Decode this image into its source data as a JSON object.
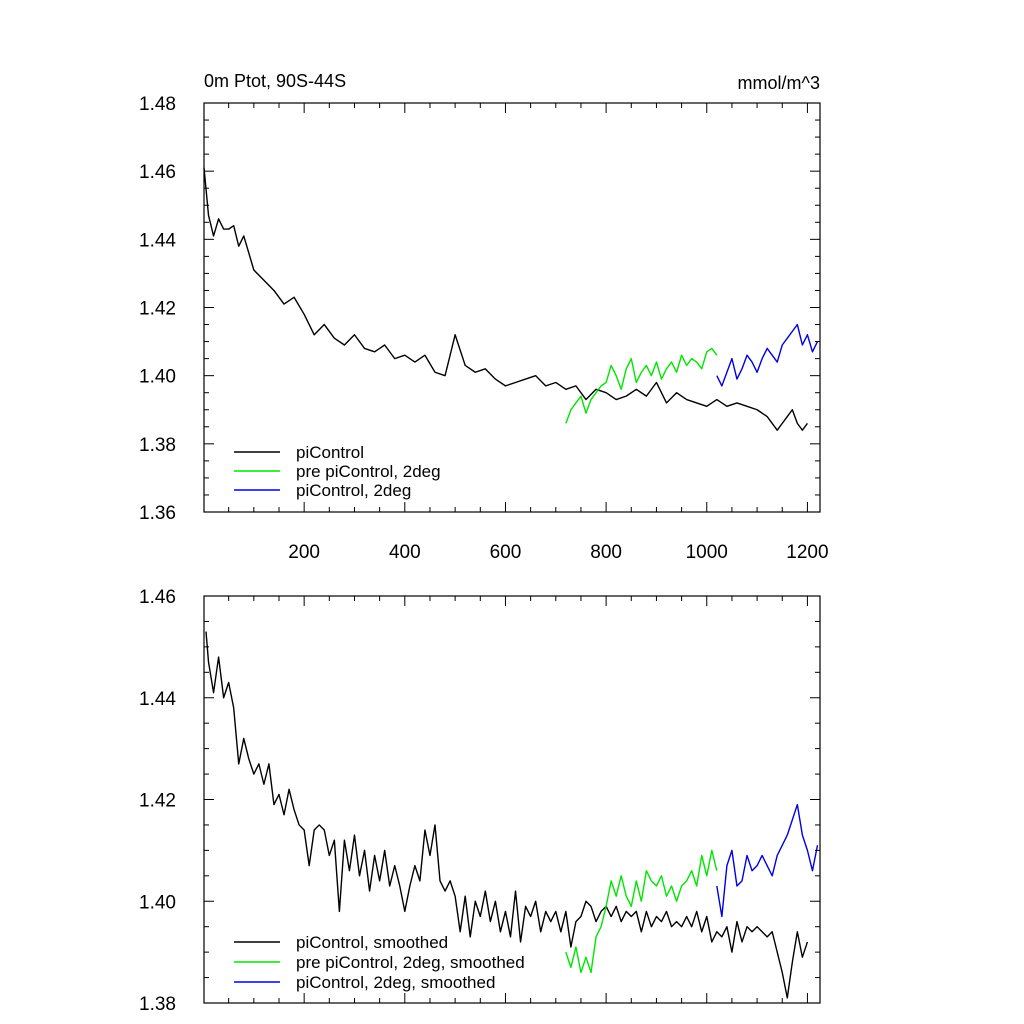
{
  "colors": {
    "piControl": "#000000",
    "pre_piControl_2deg": "#00e600",
    "piControl_2deg": "#0000e6"
  },
  "chart_data": [
    {
      "type": "line",
      "title": "0m Ptot, 90S-44S",
      "units": "mmol/m^3",
      "xlim": [
        1,
        1225
      ],
      "ylim": [
        1.36,
        1.48
      ],
      "xticks": [
        200,
        400,
        600,
        800,
        1000,
        1200
      ],
      "xtick_labels": [
        "200",
        "400",
        "600",
        "800",
        "1000",
        "1200"
      ],
      "yticks": [
        1.36,
        1.38,
        1.4,
        1.42,
        1.44,
        1.46,
        1.48
      ],
      "ytick_labels": [
        "1.36",
        "1.38",
        "1.40",
        "1.42",
        "1.44",
        "1.46",
        "1.48"
      ],
      "legend_position": "bottom-left",
      "series": [
        {
          "name": "piControl",
          "color": "#000000",
          "x": [
            1,
            10,
            20,
            30,
            40,
            50,
            60,
            70,
            80,
            90,
            100,
            120,
            140,
            160,
            180,
            200,
            220,
            240,
            260,
            280,
            300,
            320,
            340,
            360,
            380,
            400,
            420,
            440,
            460,
            480,
            500,
            520,
            540,
            560,
            580,
            600,
            620,
            640,
            660,
            680,
            700,
            720,
            740,
            760,
            780,
            800,
            820,
            840,
            860,
            880,
            900,
            920,
            940,
            960,
            980,
            1000,
            1020,
            1040,
            1060,
            1080,
            1100,
            1120,
            1140,
            1150,
            1160,
            1170,
            1180,
            1190,
            1200
          ],
          "y": [
            1.461,
            1.447,
            1.441,
            1.446,
            1.443,
            1.443,
            1.444,
            1.438,
            1.441,
            1.436,
            1.431,
            1.428,
            1.425,
            1.421,
            1.423,
            1.418,
            1.412,
            1.415,
            1.411,
            1.409,
            1.412,
            1.408,
            1.407,
            1.409,
            1.405,
            1.406,
            1.404,
            1.406,
            1.401,
            1.4,
            1.412,
            1.403,
            1.401,
            1.402,
            1.399,
            1.397,
            1.398,
            1.399,
            1.4,
            1.397,
            1.398,
            1.396,
            1.397,
            1.393,
            1.396,
            1.395,
            1.393,
            1.394,
            1.396,
            1.394,
            1.398,
            1.392,
            1.395,
            1.393,
            1.392,
            1.391,
            1.393,
            1.391,
            1.392,
            1.391,
            1.39,
            1.388,
            1.384,
            1.386,
            1.388,
            1.39,
            1.386,
            1.384,
            1.386
          ]
        },
        {
          "name": "pre piControl, 2deg",
          "color": "#00e600",
          "x": [
            720,
            730,
            740,
            750,
            760,
            770,
            780,
            790,
            800,
            810,
            820,
            830,
            840,
            850,
            860,
            870,
            880,
            890,
            900,
            910,
            920,
            930,
            940,
            950,
            960,
            970,
            980,
            990,
            1000,
            1010,
            1020
          ],
          "y": [
            1.386,
            1.39,
            1.392,
            1.394,
            1.389,
            1.393,
            1.395,
            1.397,
            1.398,
            1.403,
            1.4,
            1.396,
            1.402,
            1.405,
            1.398,
            1.401,
            1.403,
            1.4,
            1.404,
            1.399,
            1.402,
            1.404,
            1.401,
            1.406,
            1.403,
            1.405,
            1.404,
            1.402,
            1.407,
            1.408,
            1.406
          ]
        },
        {
          "name": "piControl, 2deg",
          "color": "#0000e6",
          "x": [
            1020,
            1030,
            1040,
            1050,
            1060,
            1070,
            1080,
            1090,
            1100,
            1110,
            1120,
            1130,
            1140,
            1150,
            1160,
            1170,
            1180,
            1190,
            1200,
            1210,
            1220
          ],
          "y": [
            1.4,
            1.397,
            1.401,
            1.405,
            1.399,
            1.402,
            1.406,
            1.404,
            1.401,
            1.405,
            1.408,
            1.406,
            1.404,
            1.409,
            1.411,
            1.413,
            1.415,
            1.409,
            1.412,
            1.407,
            1.41
          ]
        }
      ]
    },
    {
      "type": "line",
      "xlim": [
        1,
        1225
      ],
      "ylim": [
        1.38,
        1.46
      ],
      "yticks": [
        1.38,
        1.4,
        1.42,
        1.44,
        1.46
      ],
      "ytick_labels": [
        "1.38",
        "1.40",
        "1.42",
        "1.44",
        "1.46"
      ],
      "xticks": [
        200,
        400,
        600,
        800,
        1000,
        1200
      ],
      "legend_position": "bottom-left",
      "series": [
        {
          "name": "piControl, smoothed",
          "color": "#000000",
          "x": [
            5,
            10,
            20,
            30,
            40,
            50,
            60,
            70,
            80,
            90,
            100,
            110,
            120,
            130,
            140,
            150,
            160,
            170,
            180,
            190,
            200,
            210,
            220,
            230,
            240,
            250,
            260,
            270,
            280,
            290,
            300,
            310,
            320,
            330,
            340,
            350,
            360,
            370,
            380,
            390,
            400,
            410,
            420,
            430,
            440,
            450,
            460,
            470,
            480,
            490,
            500,
            510,
            520,
            530,
            540,
            550,
            560,
            570,
            580,
            590,
            600,
            610,
            620,
            630,
            640,
            650,
            660,
            670,
            680,
            690,
            700,
            710,
            720,
            730,
            740,
            750,
            760,
            770,
            780,
            790,
            800,
            810,
            820,
            830,
            840,
            850,
            860,
            870,
            880,
            890,
            900,
            910,
            920,
            930,
            940,
            950,
            960,
            970,
            980,
            990,
            1000,
            1010,
            1020,
            1030,
            1040,
            1050,
            1060,
            1070,
            1080,
            1090,
            1100,
            1110,
            1120,
            1130,
            1140,
            1150,
            1160,
            1170,
            1180,
            1190,
            1200
          ],
          "y": [
            1.453,
            1.447,
            1.441,
            1.448,
            1.44,
            1.443,
            1.438,
            1.427,
            1.432,
            1.428,
            1.425,
            1.427,
            1.423,
            1.427,
            1.419,
            1.421,
            1.417,
            1.422,
            1.418,
            1.415,
            1.414,
            1.407,
            1.414,
            1.415,
            1.414,
            1.409,
            1.412,
            1.398,
            1.412,
            1.406,
            1.413,
            1.405,
            1.41,
            1.402,
            1.409,
            1.404,
            1.41,
            1.403,
            1.407,
            1.403,
            1.398,
            1.403,
            1.407,
            1.404,
            1.414,
            1.409,
            1.415,
            1.404,
            1.402,
            1.404,
            1.401,
            1.394,
            1.401,
            1.393,
            1.4,
            1.397,
            1.402,
            1.396,
            1.4,
            1.394,
            1.398,
            1.393,
            1.402,
            1.392,
            1.399,
            1.397,
            1.4,
            1.394,
            1.398,
            1.396,
            1.398,
            1.394,
            1.398,
            1.391,
            1.396,
            1.397,
            1.4,
            1.399,
            1.396,
            1.398,
            1.399,
            1.397,
            1.399,
            1.396,
            1.398,
            1.397,
            1.398,
            1.394,
            1.398,
            1.395,
            1.397,
            1.396,
            1.398,
            1.395,
            1.396,
            1.395,
            1.397,
            1.395,
            1.398,
            1.394,
            1.397,
            1.392,
            1.394,
            1.393,
            1.395,
            1.39,
            1.396,
            1.392,
            1.395,
            1.394,
            1.395,
            1.394,
            1.393,
            1.394,
            1.39,
            1.386,
            1.381,
            1.388,
            1.394,
            1.389,
            1.392
          ]
        },
        {
          "name": "pre piControl, 2deg, smoothed",
          "color": "#00e600",
          "x": [
            720,
            730,
            740,
            750,
            760,
            770,
            780,
            790,
            800,
            810,
            820,
            830,
            840,
            850,
            860,
            870,
            880,
            890,
            900,
            910,
            920,
            930,
            940,
            950,
            960,
            970,
            980,
            990,
            1000,
            1010,
            1020
          ],
          "y": [
            1.39,
            1.387,
            1.391,
            1.386,
            1.389,
            1.386,
            1.393,
            1.395,
            1.399,
            1.404,
            1.401,
            1.405,
            1.401,
            1.399,
            1.404,
            1.4,
            1.406,
            1.404,
            1.403,
            1.405,
            1.401,
            1.403,
            1.4,
            1.403,
            1.404,
            1.406,
            1.403,
            1.409,
            1.405,
            1.41,
            1.406
          ]
        },
        {
          "name": "piControl, 2deg, smoothed",
          "color": "#0000e6",
          "x": [
            1020,
            1030,
            1040,
            1050,
            1060,
            1070,
            1080,
            1090,
            1100,
            1110,
            1120,
            1130,
            1140,
            1150,
            1160,
            1170,
            1180,
            1190,
            1200,
            1210,
            1220
          ],
          "y": [
            1.403,
            1.397,
            1.407,
            1.41,
            1.403,
            1.404,
            1.409,
            1.406,
            1.407,
            1.409,
            1.407,
            1.405,
            1.409,
            1.411,
            1.413,
            1.416,
            1.419,
            1.413,
            1.41,
            1.406,
            1.411
          ]
        }
      ]
    }
  ]
}
